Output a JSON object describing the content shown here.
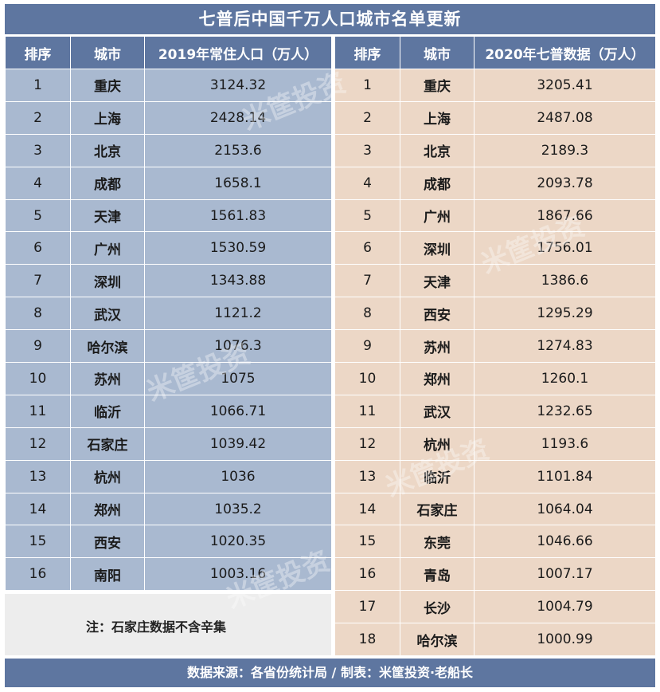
{
  "title": "七普后中国千万人口城市名单更新",
  "left_table": {
    "headers": [
      "排序",
      "城市",
      "2019年常住人口（万人）"
    ],
    "rows": [
      [
        "1",
        "重庆",
        "3124.32"
      ],
      [
        "2",
        "上海",
        "2428.14"
      ],
      [
        "3",
        "北京",
        "2153.6"
      ],
      [
        "4",
        "成都",
        "1658.1"
      ],
      [
        "5",
        "天津",
        "1561.83"
      ],
      [
        "6",
        "广州",
        "1530.59"
      ],
      [
        "7",
        "深圳",
        "1343.88"
      ],
      [
        "8",
        "武汉",
        "1121.2"
      ],
      [
        "9",
        "哈尔滨",
        "1076.3"
      ],
      [
        "10",
        "苏州",
        "1075"
      ],
      [
        "11",
        "临沂",
        "1066.71"
      ],
      [
        "12",
        "石家庄",
        "1039.42"
      ],
      [
        "13",
        "杭州",
        "1036"
      ],
      [
        "14",
        "郑州",
        "1035.2"
      ],
      [
        "15",
        "西安",
        "1020.35"
      ],
      [
        "16",
        "南阳",
        "1003.16"
      ]
    ]
  },
  "right_table": {
    "headers": [
      "排序",
      "城市",
      "2020年七普数据（万人）"
    ],
    "rows": [
      [
        "1",
        "重庆",
        "3205.41"
      ],
      [
        "2",
        "上海",
        "2487.08"
      ],
      [
        "3",
        "北京",
        "2189.3"
      ],
      [
        "4",
        "成都",
        "2093.78"
      ],
      [
        "5",
        "广州",
        "1867.66"
      ],
      [
        "6",
        "深圳",
        "1756.01"
      ],
      [
        "7",
        "天津",
        "1386.6"
      ],
      [
        "8",
        "西安",
        "1295.29"
      ],
      [
        "9",
        "苏州",
        "1274.83"
      ],
      [
        "10",
        "郑州",
        "1260.1"
      ],
      [
        "11",
        "武汉",
        "1232.65"
      ],
      [
        "12",
        "杭州",
        "1193.6"
      ],
      [
        "13",
        "临沂",
        "1101.84"
      ],
      [
        "14",
        "石家庄",
        "1064.04"
      ],
      [
        "15",
        "东莞",
        "1046.66"
      ],
      [
        "16",
        "青岛",
        "1007.17"
      ],
      [
        "17",
        "长沙",
        "1004.79"
      ],
      [
        "18",
        "哈尔滨",
        "1000.99"
      ]
    ]
  },
  "note": "注：石家庄数据不含辛集",
  "footer": "数据来源：各省份统计局 / 制表：米筐投资·老船长",
  "watermark": "米筐投资",
  "colors": {
    "header_blue": "#5e76a0",
    "left_cell": "#a9b9d0",
    "right_cell": "#ecd7c6"
  }
}
